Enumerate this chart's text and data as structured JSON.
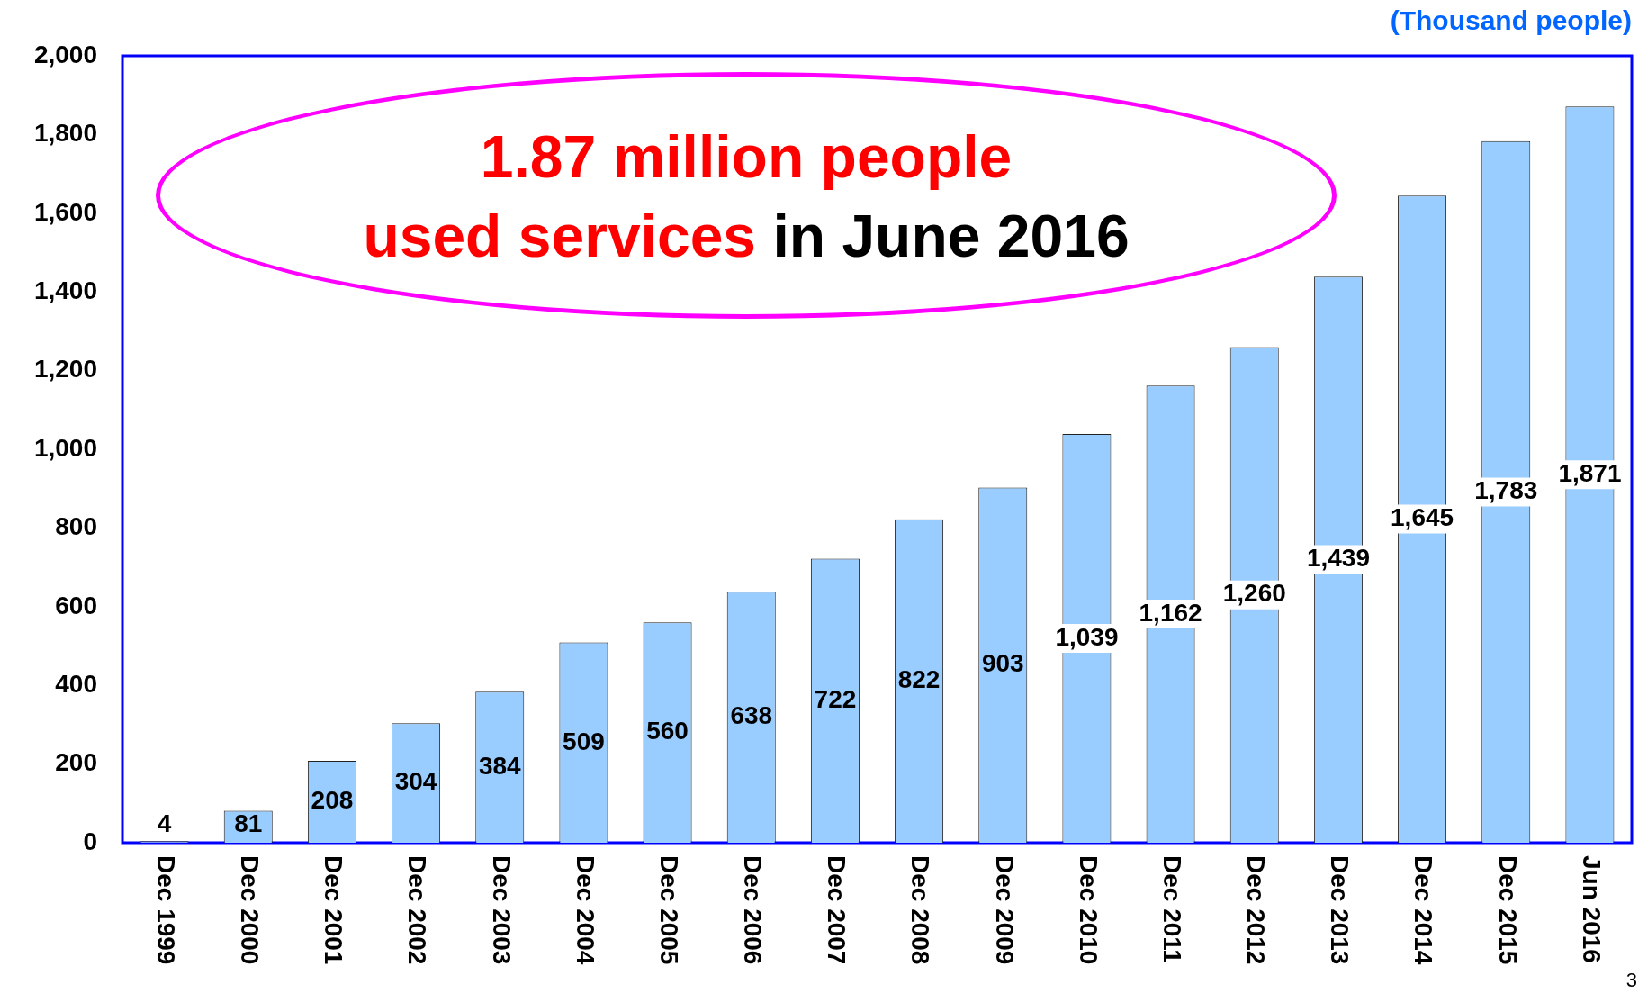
{
  "chart_data": {
    "type": "bar",
    "ylabel": "(Thousand people)",
    "categories": [
      "Dec 1999",
      "Dec 2000",
      "Dec 2001",
      "Dec 2002",
      "Dec 2003",
      "Dec 2004",
      "Dec 2005",
      "Dec 2006",
      "Dec 2007",
      "Dec 2008",
      "Dec 2009",
      "Dec 2010",
      "Dec 2011",
      "Dec 2012",
      "Dec 2013",
      "Dec 2014",
      "Dec 2015",
      "Jun 2016"
    ],
    "values": [
      4,
      81,
      208,
      304,
      384,
      509,
      560,
      638,
      722,
      822,
      903,
      1039,
      1162,
      1260,
      1439,
      1645,
      1783,
      1871
    ],
    "value_labels": [
      "4",
      "81",
      "208",
      "304",
      "384",
      "509",
      "560",
      "638",
      "722",
      "822",
      "903",
      "1,039",
      "1,162",
      "1,260",
      "1,439",
      "1,645",
      "1,783",
      "1,871"
    ],
    "color": "#99ccff",
    "ylim": [
      0,
      2000
    ],
    "yticks": [
      0,
      {
        "value": 200,
        "label": "200"
      },
      {
        "value": 400,
        "label": "400"
      },
      {
        "value": 600,
        "label": "600"
      },
      {
        "value": 800,
        "label": "800"
      },
      {
        "value": 1000,
        "label": "1,000"
      },
      {
        "value": 1200,
        "label": "1,200"
      },
      {
        "value": 1400,
        "label": "1,400"
      },
      {
        "value": 1600,
        "label": "1,600"
      },
      {
        "value": 1800,
        "label": "1,800"
      },
      {
        "value": 2000,
        "label": "2,000"
      }
    ],
    "grid": false,
    "legend": false,
    "annotations": [
      "1.87 million people used services in June 2016",
      "3"
    ]
  }
}
